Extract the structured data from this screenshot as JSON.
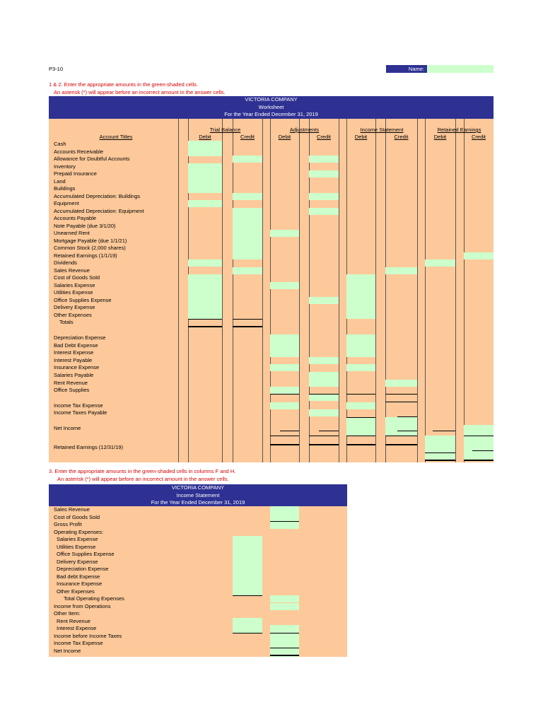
{
  "header": {
    "problem_id": "P3-10",
    "name_label": "Name:",
    "name_value": ""
  },
  "instructions_1": {
    "line1": "1 & 2.  Enter the appropriate amounts in the green-shaded cells.",
    "line2": "An asterisk (*) will appear before an incorrect amount in the answer cells."
  },
  "worksheet": {
    "title": {
      "company": "VICTORIA COMPANY",
      "name": "Worksheet",
      "period": "For the Year Ended December 31, 2019"
    },
    "account_titles_header": "Account Titles",
    "column_groups": [
      "Trial Balance",
      "Adjustments",
      "Income Statement",
      "Retained Earnings"
    ],
    "debit_label": "Debit",
    "credit_label": "Credit",
    "accounts": [
      "Cash",
      "Accounts Receivable",
      "Allowance for Doubtful Accounts",
      "Inventory",
      "Prepaid Insurance",
      "Land",
      "Buildings",
      "Accumulated Depreciation: Buildings",
      "Equipment",
      "Accumulated Depreciation: Equipment",
      "Accounts Payable",
      "Note Payable (due 3/1/20)",
      "Unearned Rent",
      "Mortgage Payable (due 1/1/21)",
      "Common Stock (2,000 shares)",
      "Retained Earnings (1/1/19)",
      "Dividends",
      "Sales Revenue",
      "Cost of Goods Sold",
      "Salaries Expense",
      "Utilities Expense",
      "Office Supplies Expense",
      "Delivery Expense",
      "Other Expenses"
    ],
    "totals_label": "Totals",
    "adjustment_accounts": [
      "Depreciation Expense",
      "Bad Debt Expense",
      "Interest Expense",
      "Interest Payable",
      "Insurance Expense",
      "Salaries Payable",
      "Rent Revenue",
      "Office Supplies"
    ],
    "tax_accounts": [
      "Income Tax Expense",
      "Income Taxes Payable"
    ],
    "net_income_label": "Net Income",
    "ending_re_label": "Retained Earnings (12/31/19)"
  },
  "instructions_3": {
    "line1": "3.   Enter the appropriate amounts in the green-shaded cells in columns F and H.",
    "line2": "An asterisk (*) will appear before an incorrect amount in the answer cells."
  },
  "income_statement": {
    "title": {
      "company": "VICTORIA COMPANY",
      "name": "Income Statement",
      "period": "For the Year Ended December 31, 2019"
    },
    "lines": [
      "Sales Revenue",
      "Cost of Goods Sold",
      "Gross Profit",
      "Operating Expenses:",
      "  Salaries Expense",
      "  Utilities Expense",
      "  Office Supplies Expense",
      "  Delivery Expense",
      "  Depreciation Expense",
      "  Bad debt Expense",
      "  Insurance Expense",
      "  Other Expenses",
      "      Total Operating Expenses",
      "Income from Operations",
      "Other Item:",
      "  Rent Revenue",
      "  Interest Expense",
      "Income before Income Taxes",
      "Income Tax Expense",
      "Net Income"
    ]
  },
  "colors": {
    "header_bg": "#2e3192",
    "body_bg": "#fdc99a",
    "input_bg": "#ccffcc",
    "instruction_text": "#d40000"
  }
}
